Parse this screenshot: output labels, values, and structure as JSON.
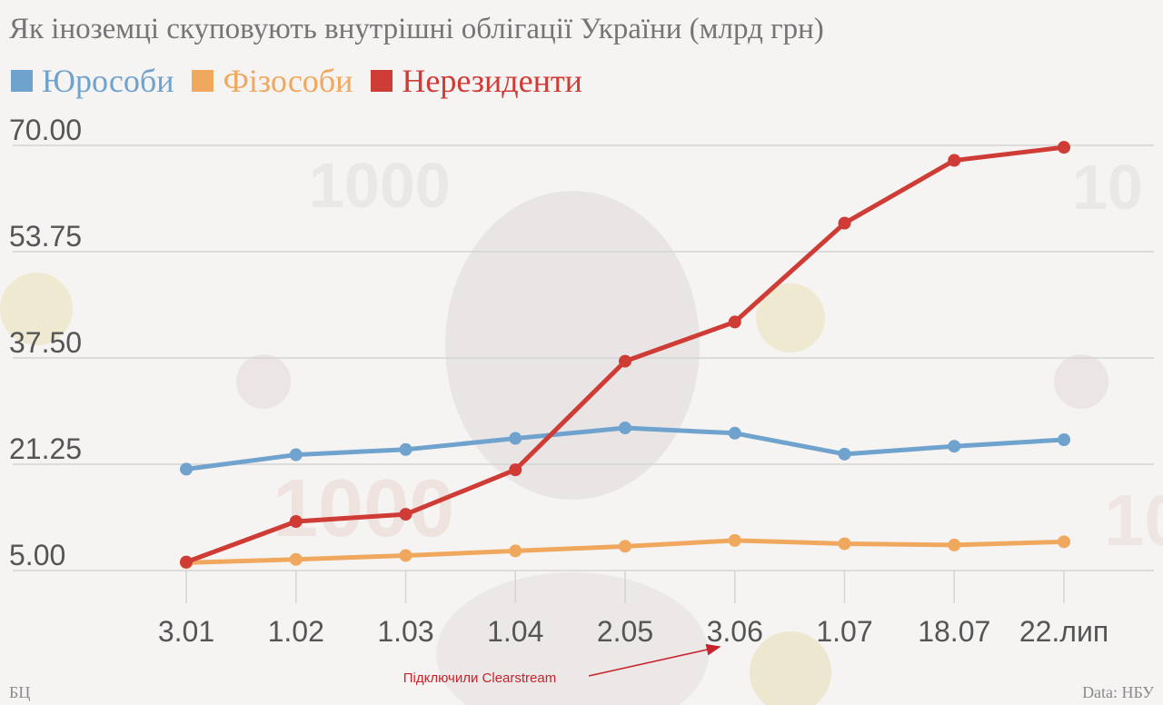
{
  "chart_data": {
    "type": "line",
    "title": "Як іноземці скуповують внутрішні облігації України (млрд грн)",
    "categories": [
      "3.01",
      "1.02",
      "1.03",
      "1.04",
      "2.05",
      "3.06",
      "1.07",
      "18.07",
      "22.лип"
    ],
    "y_ticks": [
      "70.00",
      "53.75",
      "37.50",
      "21.25",
      "5.00"
    ],
    "ylim": [
      5,
      70
    ],
    "grid": "horizontal",
    "legend_position": "top-left",
    "series": [
      {
        "name": "Юрособи",
        "color": "#6fa3cd",
        "values": [
          20.5,
          22.7,
          23.5,
          25.2,
          26.8,
          26.0,
          22.8,
          24.0,
          25.0
        ]
      },
      {
        "name": "Фізособи",
        "color": "#f0a85e",
        "values": [
          6.2,
          6.7,
          7.3,
          8.0,
          8.7,
          9.6,
          9.1,
          8.9,
          9.4
        ]
      },
      {
        "name": "Нерезиденти",
        "color": "#cf3b35",
        "values": [
          6.3,
          12.5,
          13.6,
          20.4,
          37.0,
          43.0,
          58.1,
          67.7,
          69.7
        ]
      }
    ],
    "annotation": "Підключили Clearstream",
    "source_left": "БЦ",
    "source_right": "Data: НБУ"
  }
}
